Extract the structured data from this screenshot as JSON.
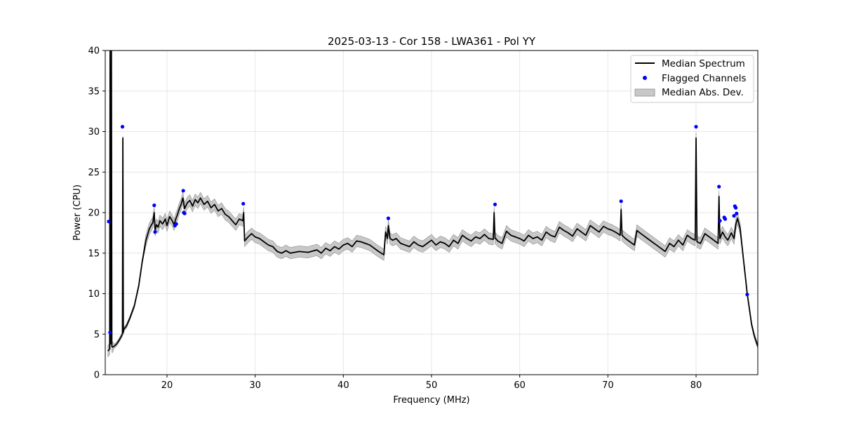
{
  "chart_data": {
    "type": "line",
    "title": "2025-03-13 - Cor 158 - LWA361 - Pol YY",
    "xlabel": "Frequency (MHz)",
    "ylabel": "Power (CPU)",
    "xlim": [
      13,
      87
    ],
    "ylim": [
      0,
      40
    ],
    "xticks": [
      20,
      30,
      40,
      50,
      60,
      70,
      80
    ],
    "yticks": [
      0,
      5,
      10,
      15,
      20,
      25,
      30,
      35,
      40
    ],
    "grid": true,
    "legend_position": "top-right",
    "legend": [
      "Median Spectrum",
      "Flagged Channels",
      "Median Abs. Dev."
    ],
    "colors": {
      "median": "#000000",
      "flagged": "#0000ff",
      "mad_fill": "#c8c8c8",
      "mad_edge": "#8c8c8c",
      "grid": "#e6e6e6"
    },
    "series": [
      {
        "name": "Median Spectrum",
        "x": [
          13.3,
          13.5,
          13.55,
          13.6,
          13.7,
          13.75,
          13.8,
          14.0,
          14.3,
          14.6,
          14.95,
          15.0,
          15.05,
          15.1,
          15.4,
          15.8,
          16.3,
          16.8,
          17.2,
          17.6,
          18.0,
          18.4,
          18.55,
          18.65,
          18.8,
          19.0,
          19.2,
          19.5,
          19.8,
          20.0,
          20.3,
          20.6,
          20.8,
          21.0,
          21.2,
          21.4,
          21.6,
          21.8,
          22.0,
          22.3,
          22.6,
          22.9,
          23.2,
          23.5,
          23.8,
          24.2,
          24.6,
          25.0,
          25.4,
          25.8,
          26.2,
          26.6,
          27.0,
          27.4,
          27.8,
          28.2,
          28.6,
          28.7,
          28.8,
          29.2,
          29.6,
          30.0,
          30.5,
          31.0,
          31.5,
          32.0,
          32.5,
          33.0,
          33.5,
          34.0,
          35.0,
          36.0,
          37.0,
          37.5,
          38.0,
          38.5,
          39.0,
          39.5,
          40.0,
          40.5,
          41.0,
          41.5,
          42.0,
          42.5,
          43.0,
          43.5,
          44.0,
          44.3,
          44.6,
          44.8,
          45.0,
          45.1,
          45.3,
          45.6,
          46.0,
          46.5,
          47.0,
          47.5,
          48.0,
          48.5,
          49.0,
          49.5,
          50.0,
          50.5,
          51.0,
          51.5,
          52.0,
          52.5,
          53.0,
          53.5,
          54.0,
          54.5,
          55.0,
          55.5,
          56.0,
          56.5,
          57.0,
          57.1,
          57.2,
          57.3,
          57.5,
          58.0,
          58.5,
          59.0,
          59.5,
          60.0,
          60.5,
          61.0,
          61.5,
          62.0,
          62.5,
          63.0,
          63.5,
          64.0,
          64.5,
          65.0,
          65.5,
          66.0,
          66.5,
          67.0,
          67.5,
          68.0,
          68.5,
          69.0,
          69.5,
          70.0,
          70.5,
          71.0,
          71.4,
          71.5,
          71.6,
          71.8,
          72.0,
          72.5,
          73.0,
          73.3,
          73.5,
          74.0,
          74.5,
          75.0,
          75.5,
          76.0,
          76.5,
          77.0,
          77.5,
          78.0,
          78.5,
          79.0,
          79.5,
          79.9,
          80.0,
          80.1,
          80.5,
          81.0,
          81.5,
          82.0,
          82.5,
          82.6,
          82.7,
          83.0,
          83.3,
          83.6,
          84.0,
          84.3,
          84.5,
          84.7,
          85.0,
          85.3,
          85.6,
          85.8,
          86.0,
          86.3,
          86.6,
          87.0
        ],
        "y": [
          2.9,
          3.2,
          40.0,
          3.8,
          40.0,
          3.5,
          3.4,
          3.5,
          3.8,
          4.3,
          5.0,
          29.2,
          5.2,
          5.6,
          6.0,
          7.0,
          8.5,
          11.0,
          14.0,
          16.5,
          18.0,
          18.8,
          20.0,
          17.8,
          18.5,
          18.2,
          19.0,
          18.6,
          19.2,
          18.4,
          19.5,
          19.0,
          18.5,
          19.2,
          19.8,
          20.5,
          21.0,
          21.8,
          20.5,
          21.2,
          21.5,
          20.8,
          21.6,
          21.2,
          21.8,
          21.0,
          21.4,
          20.6,
          21.0,
          20.2,
          20.5,
          19.8,
          19.5,
          19.0,
          18.5,
          19.2,
          19.0,
          20.0,
          16.5,
          17.0,
          17.4,
          17.0,
          16.8,
          16.4,
          16.0,
          15.8,
          15.2,
          15.0,
          15.3,
          15.0,
          15.2,
          15.1,
          15.4,
          15.0,
          15.6,
          15.3,
          15.8,
          15.5,
          16.0,
          16.2,
          15.8,
          16.5,
          16.4,
          16.2,
          16.0,
          15.6,
          15.2,
          15.0,
          14.8,
          17.6,
          16.8,
          18.4,
          16.8,
          16.6,
          16.8,
          16.2,
          16.0,
          15.8,
          16.4,
          16.0,
          15.8,
          16.2,
          16.6,
          16.0,
          16.4,
          16.2,
          15.8,
          16.6,
          16.2,
          17.2,
          16.8,
          16.5,
          17.0,
          16.8,
          17.3,
          16.8,
          16.7,
          20.0,
          16.8,
          16.8,
          16.5,
          16.2,
          17.7,
          17.2,
          17.0,
          16.8,
          16.5,
          17.2,
          16.8,
          17.0,
          16.6,
          17.6,
          17.2,
          17.0,
          18.2,
          17.8,
          17.5,
          17.1,
          18.0,
          17.6,
          17.2,
          18.4,
          18.0,
          17.6,
          18.3,
          18.0,
          17.8,
          17.5,
          17.2,
          20.4,
          17.2,
          17.0,
          16.8,
          16.4,
          16.0,
          17.8,
          17.6,
          17.2,
          16.8,
          16.4,
          16.0,
          15.6,
          15.2,
          16.2,
          15.8,
          16.6,
          16.0,
          17.2,
          16.8,
          16.6,
          29.2,
          16.4,
          16.2,
          17.4,
          17.0,
          16.6,
          16.2,
          22.0,
          16.8,
          17.6,
          17.0,
          16.6,
          17.5,
          16.8,
          18.5,
          19.3,
          18.0,
          15.0,
          12.0,
          10.0,
          8.5,
          6.2,
          4.8,
          3.5
        ]
      },
      {
        "name": "Flagged Channels",
        "x": [
          13.4,
          13.55,
          14.95,
          18.55,
          18.65,
          20.9,
          21.05,
          21.85,
          21.9,
          22.0,
          28.65,
          45.1,
          57.2,
          71.5,
          80.0,
          82.6,
          82.7,
          83.2,
          83.3,
          84.3,
          84.4,
          84.5,
          84.6,
          85.8
        ],
        "y": [
          18.9,
          5.2,
          30.6,
          20.9,
          17.6,
          18.4,
          18.6,
          22.7,
          20.0,
          19.9,
          21.1,
          19.3,
          21.0,
          21.4,
          30.6,
          23.2,
          19.0,
          19.4,
          19.2,
          19.6,
          20.8,
          20.6,
          19.9,
          9.9
        ]
      }
    ]
  }
}
